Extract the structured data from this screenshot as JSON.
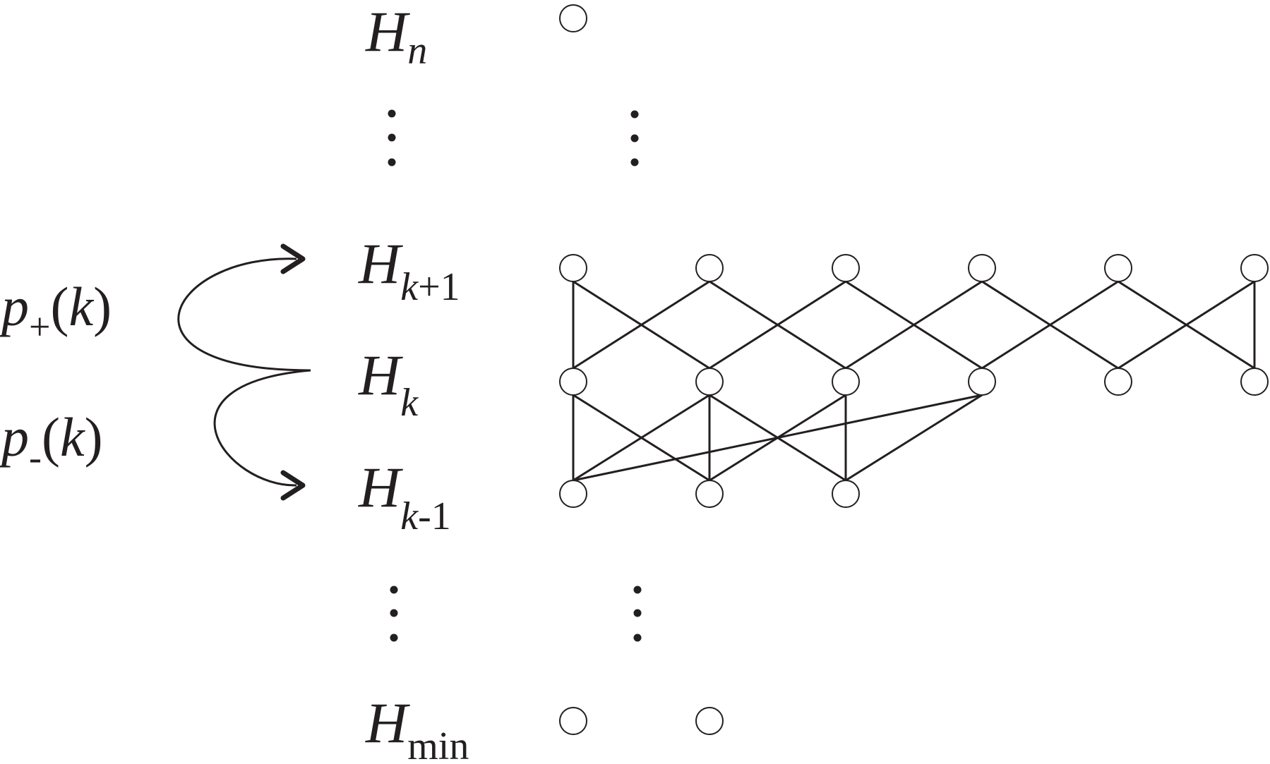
{
  "levels": {
    "top": {
      "base": "H",
      "sub": "n"
    },
    "upper": {
      "base": "H",
      "sub_var": "k",
      "sub_rest": "+1"
    },
    "middle": {
      "base": "H",
      "sub": "k"
    },
    "lower": {
      "base": "H",
      "sub_var": "k",
      "sub_rest": "-1"
    },
    "bottom": {
      "base": "H",
      "sub": "min"
    }
  },
  "transitions": {
    "up": {
      "var": "p",
      "sub": "+",
      "open": "(",
      "arg": "k",
      "close": ")"
    },
    "down": {
      "var": "p",
      "sub": "-",
      "open": "(",
      "arg": "k",
      "close": ")"
    }
  },
  "graph": {
    "nodes_per_level": {
      "top": 1,
      "upper": 6,
      "middle": 6,
      "lower": 3,
      "bottom": 2
    },
    "edges_upper_middle": [
      [
        0,
        0
      ],
      [
        0,
        1
      ],
      [
        1,
        0
      ],
      [
        1,
        2
      ],
      [
        2,
        1
      ],
      [
        2,
        3
      ],
      [
        3,
        2
      ],
      [
        3,
        4
      ],
      [
        4,
        3
      ],
      [
        4,
        5
      ],
      [
        5,
        4
      ],
      [
        5,
        5
      ]
    ],
    "edges_middle_lower": [
      [
        0,
        0
      ],
      [
        0,
        1
      ],
      [
        1,
        0
      ],
      [
        1,
        1
      ],
      [
        1,
        2
      ],
      [
        2,
        1
      ],
      [
        2,
        2
      ],
      [
        3,
        0
      ],
      [
        3,
        2
      ]
    ]
  },
  "colors": {
    "ink": "#231f20",
    "background": "#ffffff"
  }
}
